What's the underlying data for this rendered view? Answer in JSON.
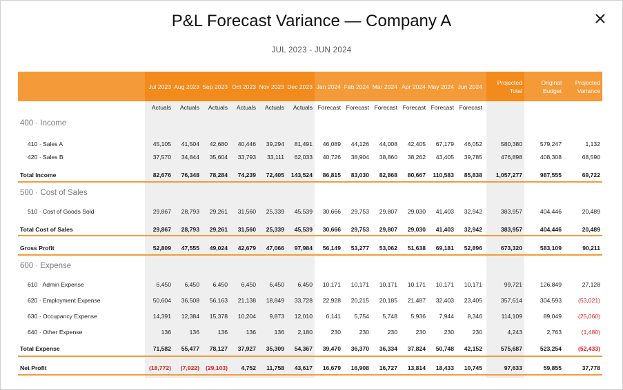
{
  "dialog": {
    "title": "P&L Forecast Variance — Company A",
    "subtitle": "JUL 2023 - JUN 2024",
    "close_icon": "close-icon"
  },
  "colors": {
    "accent": "#f59a38",
    "accent_dark": "#f28a1c",
    "shade": "#efefef",
    "negative": "#e02020"
  },
  "columns": [
    "Jul 2023",
    "Aug 2023",
    "Sep 2023",
    "Oct 2023",
    "Nov 2023",
    "Dec 2023",
    "Jan 2024",
    "Feb 2024",
    "Mar 2024",
    "Apr 2024",
    "May 2024",
    "Jun 2024",
    "Projected Total",
    "Original Budget",
    "Projected Variance"
  ],
  "column_types": [
    "Actuals",
    "Actuals",
    "Actuals",
    "Actuals",
    "Actuals",
    "Actuals",
    "Forecast",
    "Forecast",
    "Forecast",
    "Forecast",
    "Forecast",
    "Forecast",
    "",
    "",
    ""
  ],
  "sections": {
    "income": "400 · Income",
    "cost_of_sales": "500 · Cost of Sales",
    "expense": "600 · Expense"
  },
  "rows": [
    {
      "label": "410 · Sales A",
      "values": [
        "45,105",
        "41,504",
        "42,680",
        "40,446",
        "39,294",
        "81,491",
        "46,089",
        "44,126",
        "44,008",
        "42,405",
        "67,179",
        "46,052",
        "580,380",
        "579,247",
        "1,132"
      ]
    },
    {
      "label": "420 · Sales B",
      "values": [
        "37,570",
        "34,844",
        "35,604",
        "33,793",
        "33,111",
        "62,033",
        "40,726",
        "38,904",
        "38,860",
        "38,262",
        "43,405",
        "39,785",
        "476,898",
        "408,308",
        "68,590"
      ]
    },
    {
      "label": "Total Income",
      "values": [
        "82,676",
        "76,348",
        "78,284",
        "74,239",
        "72,405",
        "143,524",
        "86,815",
        "83,030",
        "82,868",
        "80,667",
        "110,583",
        "85,838",
        "1,057,277",
        "987,555",
        "69,722"
      ]
    },
    {
      "label": "510 · Cost of Goods Sold",
      "values": [
        "29,867",
        "28,793",
        "29,261",
        "31,560",
        "25,339",
        "45,539",
        "30,666",
        "29,753",
        "29,807",
        "29,030",
        "41,403",
        "32,942",
        "383,957",
        "404,446",
        "20,489"
      ]
    },
    {
      "label": "Total Cost of Sales",
      "values": [
        "29,867",
        "28,793",
        "29,261",
        "31,560",
        "25,339",
        "45,539",
        "30,666",
        "29,753",
        "29,807",
        "29,030",
        "41,403",
        "32,942",
        "383,957",
        "404,446",
        "20,489"
      ]
    },
    {
      "label": "Gross Profit",
      "values": [
        "52,809",
        "47,555",
        "49,024",
        "42,679",
        "47,066",
        "97,984",
        "56,149",
        "53,277",
        "53,062",
        "51,638",
        "69,181",
        "52,896",
        "673,320",
        "583,109",
        "90,211"
      ]
    },
    {
      "label": "610 · Admin Expense",
      "values": [
        "6,450",
        "6,450",
        "6,450",
        "6,450",
        "6,450",
        "6,450",
        "10,171",
        "10,171",
        "10,171",
        "10,171",
        "10,171",
        "10,171",
        "99,721",
        "126,849",
        "27,128"
      ]
    },
    {
      "label": "620 · Employment Expense",
      "values": [
        "50,604",
        "36,508",
        "56,163",
        "21,138",
        "18,849",
        "33,728",
        "22,928",
        "20,215",
        "20,185",
        "21,487",
        "32,403",
        "23,405",
        "357,614",
        "304,593",
        "(53,021)"
      ]
    },
    {
      "label": "630 · Occupancy Expense",
      "values": [
        "14,391",
        "12,384",
        "15,378",
        "10,204",
        "9,873",
        "12,010",
        "6,141",
        "5,754",
        "5,748",
        "5,936",
        "7,944",
        "8,346",
        "114,109",
        "89,049",
        "(25,060)"
      ]
    },
    {
      "label": "640 · Other Expense",
      "values": [
        "136",
        "136",
        "136",
        "136",
        "136",
        "2,180",
        "230",
        "230",
        "230",
        "230",
        "230",
        "230",
        "4,243",
        "2,763",
        "(1,480)"
      ]
    },
    {
      "label": "Total Expense",
      "values": [
        "71,582",
        "55,477",
        "78,127",
        "37,927",
        "35,309",
        "54,367",
        "39,470",
        "36,370",
        "36,334",
        "37,824",
        "50,748",
        "42,152",
        "575,687",
        "523,254",
        "(52,433)"
      ]
    },
    {
      "label": "Net Profit",
      "values": [
        "(18,772)",
        "(7,922)",
        "(29,103)",
        "4,752",
        "11,758",
        "43,617",
        "16,679",
        "16,908",
        "16,727",
        "13,814",
        "18,433",
        "10,745",
        "97,633",
        "59,855",
        "37,778"
      ]
    }
  ]
}
